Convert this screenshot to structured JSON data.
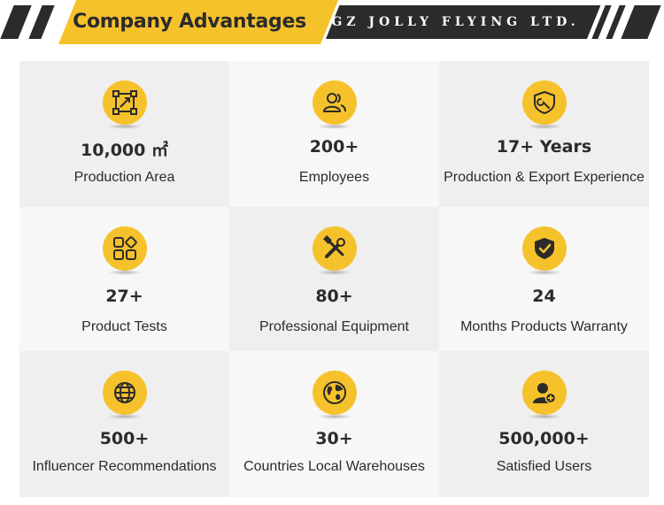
{
  "header": {
    "title": "Company Advantages",
    "company": "GZ JOLLY FLYING LTD."
  },
  "colors": {
    "accent": "#f6c22c",
    "dark": "#2b2b2b",
    "cell_dark": "#efefef",
    "cell_light": "#f7f7f7"
  },
  "advantages": [
    {
      "value": "10,000 ㎡",
      "label": "Production Area",
      "icon": "area-icon"
    },
    {
      "value": "200+",
      "label": "Employees",
      "icon": "users-icon"
    },
    {
      "value": "17+ Years",
      "label": "Production & Export Experience",
      "icon": "wrench-shield-icon"
    },
    {
      "value": "27+",
      "label": "Product Tests",
      "icon": "tests-icon"
    },
    {
      "value": "80+",
      "label": "Professional Equipment",
      "icon": "tools-icon"
    },
    {
      "value": "24",
      "label": "Months Products Warranty",
      "icon": "warranty-shield-icon"
    },
    {
      "value": "500+",
      "label": "Influencer Recommendations",
      "icon": "globe-icon"
    },
    {
      "value": "30+",
      "label": "Countries Local Warehouses",
      "icon": "world-map-icon"
    },
    {
      "value": "500,000+",
      "label": "Satisfied Users",
      "icon": "add-user-icon"
    }
  ]
}
